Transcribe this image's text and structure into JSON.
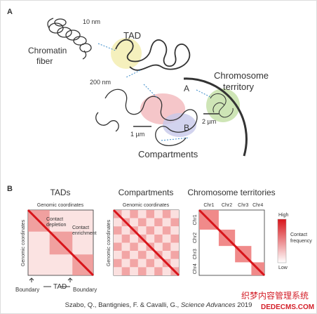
{
  "panel_a": {
    "label": "A",
    "scale_10nm": "10 nm",
    "tad": "TAD",
    "chromatin_fiber": [
      "Chromatin",
      "fiber"
    ],
    "scale_200nm": "200 nm",
    "chromosome_territory": [
      "Chromosome",
      "territory"
    ],
    "compartment_a": "A",
    "compartment_b": "B",
    "scale_1um": "1 µm",
    "scale_2um": "2 µm",
    "compartments": "Compartments"
  },
  "panel_b": {
    "label": "B",
    "tads": {
      "title": "TADs",
      "x_axis": "Genomic coordinates",
      "y_axis": "Genomic coordinates",
      "contact_depletion": [
        "Contact",
        "depletion"
      ],
      "contact_enrichment": [
        "Contact",
        "enrichment"
      ],
      "boundary_left": "Boundary",
      "tad": "TAD",
      "boundary_right": "Boundary"
    },
    "compartments": {
      "title": "Compartments",
      "x_axis": "Genomic coordinates",
      "y_axis": "Genomic coordinates"
    },
    "territories": {
      "title": "Chromosome territories",
      "columns": [
        "Chr1",
        "Chr2",
        "Chr3",
        "Chr4"
      ],
      "rows": [
        "Chr1",
        "Chr2",
        "Chr3",
        "Chr4"
      ]
    },
    "legend": {
      "high": "High",
      "low": "Low",
      "label": [
        "Contact",
        "frequency"
      ]
    }
  },
  "citation": {
    "authors": "Szabo, Q., Bantignies, F. & Cavalli, G., ",
    "journal": "Science Advances",
    "year": " 2019"
  },
  "watermark": [
    "织梦内容管理系统",
    "DEDECMS.COM"
  ]
}
